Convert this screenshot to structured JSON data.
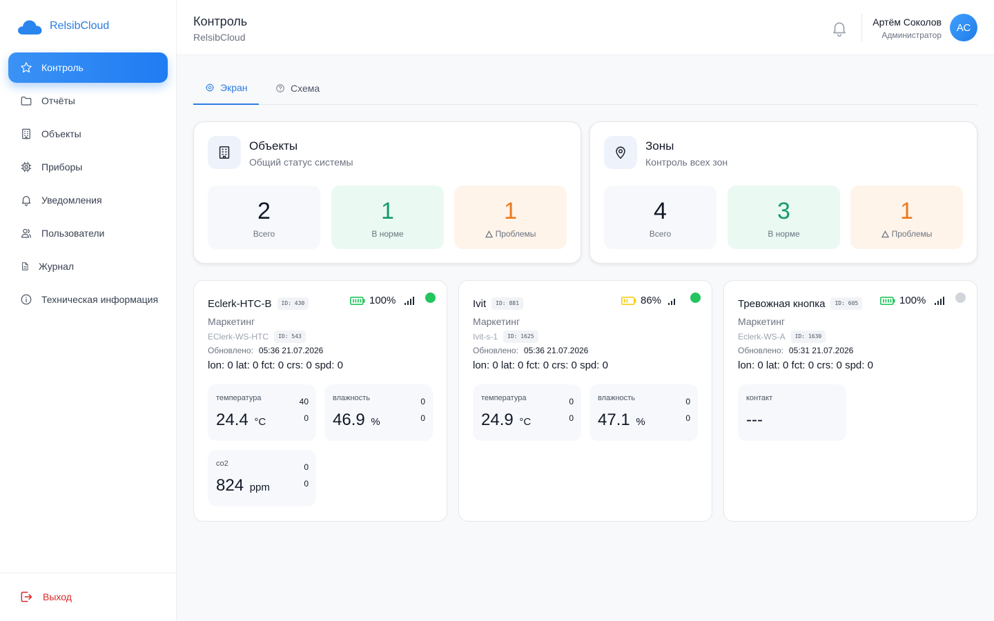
{
  "sidebar": {
    "brand": "RelsibCloud",
    "items": [
      {
        "label": "Контроль",
        "icon": "star-icon"
      },
      {
        "label": "Отчёты",
        "icon": "folder-icon"
      },
      {
        "label": "Объекты",
        "icon": "building-icon"
      },
      {
        "label": "Приборы",
        "icon": "chip-icon"
      },
      {
        "label": "Уведомления",
        "icon": "bell-icon"
      },
      {
        "label": "Пользователи",
        "icon": "users-icon"
      },
      {
        "label": "Журнал",
        "icon": "document-icon"
      },
      {
        "label": "Техническая информация",
        "icon": "info-icon"
      }
    ],
    "logout": "Выход"
  },
  "header": {
    "title": "Контроль",
    "subtitle": "RelsibCloud",
    "user_name": "Артём Соколов",
    "user_role": "Администратор",
    "avatar_initials": "АС"
  },
  "tabs": [
    {
      "label": "Экран",
      "icon": "gear-icon",
      "active": true
    },
    {
      "label": "Схема",
      "icon": "question-circle-icon",
      "active": false
    }
  ],
  "summary": {
    "objects": {
      "title": "Объекты",
      "subtitle": "Общий статус системы",
      "total": "2",
      "ok": "1",
      "problems": "1"
    },
    "zones": {
      "title": "Зоны",
      "subtitle": "Контроль всех зон",
      "total": "4",
      "ok": "3",
      "problems": "1"
    },
    "labels": {
      "total": "Всего",
      "ok": "В норме",
      "problems": "Проблемы"
    }
  },
  "labels": {
    "updated": "Обновлено:"
  },
  "colors": {
    "accent": "#2a7ce0",
    "online": "#22c55e",
    "offline": "#d1d5db",
    "battery_full": "#22c55e",
    "battery_mid": "#facc15",
    "ok": "#169a6d",
    "problem": "#ea7a1e",
    "logout": "#dc2626"
  },
  "devices": [
    {
      "name": "Eclerk-HTC-B",
      "id": "ID: 430",
      "battery": "100%",
      "battery_level": 1.0,
      "group": "Маркетинг",
      "model": "EClerk-WS-HTC",
      "model_id": "ID: 543",
      "updated": "05:36 21.07.2026",
      "coords": "lon: 0 lat: 0 fct: 0 crs: 0 spd: 0",
      "online": true,
      "sensors": [
        {
          "name": "температура",
          "value": "24.4",
          "unit": "°C",
          "max": "40",
          "min": "0"
        },
        {
          "name": "влажность",
          "value": "46.9",
          "unit": "%",
          "max": "0",
          "min": "0"
        },
        {
          "name": "co2",
          "value": "824",
          "unit": "ppm",
          "max": "0",
          "min": "0"
        }
      ]
    },
    {
      "name": "Ivit",
      "id": "ID: 881",
      "battery": "86%",
      "battery_level": 0.86,
      "group": "Маркетинг",
      "model": "Ivit-s-1",
      "model_id": "ID: 1625",
      "updated": "05:36 21.07.2026",
      "coords": "lon: 0 lat: 0 fct: 0 crs: 0 spd: 0",
      "online": true,
      "sensors": [
        {
          "name": "температура",
          "value": "24.9",
          "unit": "°C",
          "max": "0",
          "min": "0"
        },
        {
          "name": "влажность",
          "value": "47.1",
          "unit": "%",
          "max": "0",
          "min": "0"
        }
      ]
    },
    {
      "name": "Тревожная кнопка",
      "id": "ID: 605",
      "battery": "100%",
      "battery_level": 1.0,
      "group": "Маркетинг",
      "model": "Eclerk-WS-A",
      "model_id": "ID: 1630",
      "updated": "05:31 21.07.2026",
      "coords": "lon: 0 lat: 0 fct: 0 crs: 0 spd: 0",
      "online": false,
      "sensors": [
        {
          "name": "контакт",
          "value": "---",
          "unit": "",
          "max": "",
          "min": ""
        }
      ]
    }
  ]
}
